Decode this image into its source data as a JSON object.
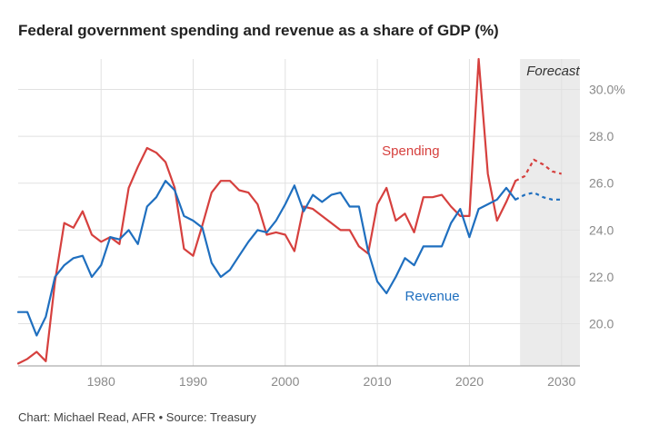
{
  "title": "Federal government spending and revenue as a share of GDP (%)",
  "source": "Chart: Michael Read, AFR • Source: Treasury",
  "colors": {
    "spending": "#d6403e",
    "revenue": "#1f6fbf",
    "forecast_band": "#ebebeb",
    "grid": "#e1e1e1"
  },
  "chart_data": {
    "type": "line",
    "title": "Federal government spending and revenue as a share of GDP (%)",
    "xlabel": "",
    "ylabel": "",
    "xlim": [
      1971,
      2032
    ],
    "ylim": [
      18.2,
      31.3
    ],
    "grid": true,
    "x_ticks": [
      1980,
      1990,
      2000,
      2010,
      2020,
      2030
    ],
    "x_tick_labels": [
      "1980",
      "1990",
      "2000",
      "2010",
      "2020",
      "2030"
    ],
    "y_ticks": [
      20,
      22,
      24,
      26,
      28,
      30
    ],
    "y_tick_labels": [
      "20.0",
      "22.0",
      "24.0",
      "26.0",
      "28.0",
      "30.0%"
    ],
    "forecast": {
      "label": "Forecast",
      "from": 2025.5,
      "to": 2032
    },
    "series": [
      {
        "name": "Spending",
        "color": "#d6403e",
        "x": [
          1971,
          1972,
          1973,
          1974,
          1975,
          1976,
          1977,
          1978,
          1979,
          1980,
          1981,
          1982,
          1983,
          1984,
          1985,
          1986,
          1987,
          1988,
          1989,
          1990,
          1991,
          1992,
          1993,
          1994,
          1995,
          1996,
          1997,
          1998,
          1999,
          2000,
          2001,
          2002,
          2003,
          2004,
          2005,
          2006,
          2007,
          2008,
          2009,
          2010,
          2011,
          2012,
          2013,
          2014,
          2015,
          2016,
          2017,
          2018,
          2019,
          2020,
          2021,
          2022,
          2023,
          2024,
          2025
        ],
        "values": [
          18.3,
          18.5,
          18.8,
          18.4,
          21.8,
          24.3,
          24.1,
          24.8,
          23.8,
          23.5,
          23.7,
          23.4,
          25.8,
          26.7,
          27.5,
          27.3,
          26.9,
          25.8,
          23.2,
          22.9,
          24.2,
          25.6,
          26.1,
          26.1,
          25.7,
          25.6,
          25.1,
          23.8,
          23.9,
          23.8,
          23.1,
          25.0,
          24.9,
          24.6,
          24.3,
          24.0,
          24.0,
          23.3,
          23.0,
          25.1,
          25.8,
          24.4,
          24.7,
          23.9,
          25.4,
          25.4,
          25.5,
          25.0,
          24.6,
          24.6,
          31.3,
          26.4,
          24.4,
          25.2,
          26.1
        ],
        "forecast_x": [
          2025,
          2026,
          2027,
          2028,
          2029,
          2030
        ],
        "forecast_values": [
          26.1,
          26.3,
          27.0,
          26.8,
          26.5,
          26.4
        ]
      },
      {
        "name": "Revenue",
        "color": "#1f6fbf",
        "x": [
          1971,
          1972,
          1973,
          1974,
          1975,
          1976,
          1977,
          1978,
          1979,
          1980,
          1981,
          1982,
          1983,
          1984,
          1985,
          1986,
          1987,
          1988,
          1989,
          1990,
          1991,
          1992,
          1993,
          1994,
          1995,
          1996,
          1997,
          1998,
          1999,
          2000,
          2001,
          2002,
          2003,
          2004,
          2005,
          2006,
          2007,
          2008,
          2009,
          2010,
          2011,
          2012,
          2013,
          2014,
          2015,
          2016,
          2017,
          2018,
          2019,
          2020,
          2021,
          2022,
          2023,
          2024,
          2025
        ],
        "values": [
          20.5,
          20.5,
          19.5,
          20.3,
          22.0,
          22.5,
          22.8,
          22.9,
          22.0,
          22.5,
          23.7,
          23.6,
          24.0,
          23.4,
          25.0,
          25.4,
          26.1,
          25.7,
          24.6,
          24.4,
          24.1,
          22.6,
          22.0,
          22.3,
          22.9,
          23.5,
          24.0,
          23.9,
          24.4,
          25.1,
          25.9,
          24.8,
          25.5,
          25.2,
          25.5,
          25.6,
          25.0,
          25.0,
          23.1,
          21.8,
          21.3,
          22.0,
          22.8,
          22.5,
          23.3,
          23.3,
          23.3,
          24.3,
          24.9,
          23.7,
          24.9,
          25.1,
          25.3,
          25.8,
          25.3
        ],
        "forecast_x": [
          2025,
          2026,
          2027,
          2028,
          2029,
          2030
        ],
        "forecast_values": [
          25.3,
          25.5,
          25.6,
          25.4,
          25.3,
          25.3
        ]
      }
    ],
    "annotations": [
      {
        "text": "Spending",
        "x": 2010.5,
        "y": 27.2,
        "series": "Spending"
      },
      {
        "text": "Revenue",
        "x": 2013,
        "y": 21.0,
        "series": "Revenue"
      },
      {
        "text": "Forecast",
        "x": 2026.2,
        "y": 30.6
      }
    ]
  }
}
